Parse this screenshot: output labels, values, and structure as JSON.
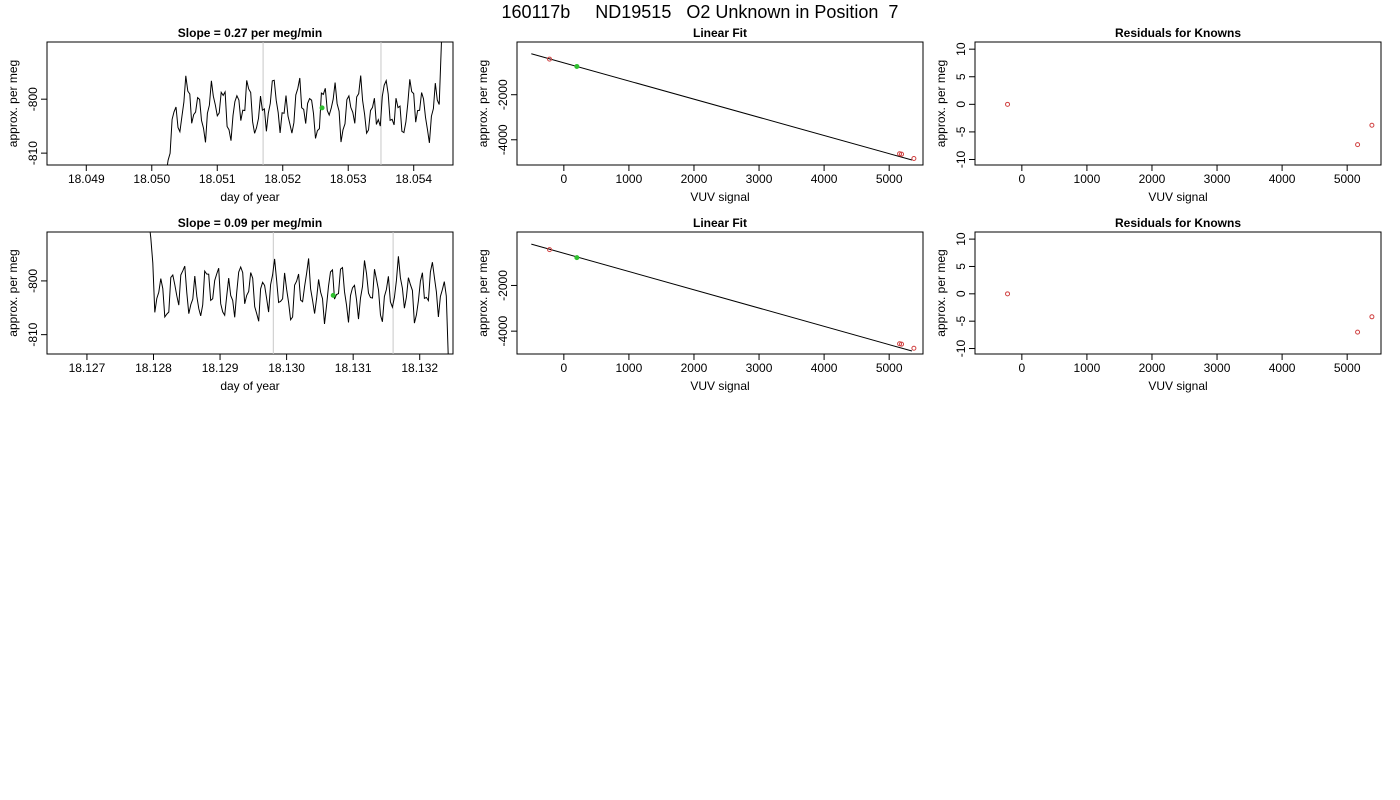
{
  "page_title": "160117b     ND19515   O2 Unknown in Position  7",
  "colors": {
    "trace": "#000000",
    "guide": "#c8c8c8",
    "known": "#d04040",
    "unknown": "#30c030"
  },
  "chart_data": [
    {
      "type": "line",
      "title": "Slope =  0.27  per meg/min",
      "xlabel": "day of year",
      "ylabel": "approx. per meg",
      "xlim": [
        18.0484,
        18.0546
      ],
      "ylim": [
        -812.2,
        -789.4
      ],
      "xticks": [
        "18.049",
        "18.050",
        "18.051",
        "18.052",
        "18.053",
        "18.054"
      ],
      "xtick_values": [
        18.049,
        18.05,
        18.051,
        18.052,
        18.053,
        18.054
      ],
      "yticks": [
        "-810",
        "-800"
      ],
      "ytick_values": [
        -810,
        -800
      ],
      "guide_lines_x": [
        18.0517,
        18.0535
      ],
      "unknown_point": {
        "x": 18.0526,
        "y": -801.6
      },
      "trace": {
        "x_start": 18.0501,
        "x_end": 18.0544,
        "step": 3e-05,
        "base": -801.8,
        "amp1": 3.4,
        "period1": 0.00019,
        "amp2": 2.1,
        "period2": 0.00043,
        "amp3": 1.3,
        "period3": 6.7e-05,
        "ramp_start": -822,
        "ramp_len": 0.00025,
        "end_value": -782
      }
    },
    {
      "type": "scatter",
      "title": "Linear Fit",
      "xlabel": "VUV signal",
      "ylabel": "approx. per meg",
      "xlim": [
        -720,
        5520
      ],
      "ylim": [
        -5120,
        340
      ],
      "xticks": [
        "0",
        "1000",
        "2000",
        "3000",
        "4000",
        "5000"
      ],
      "xtick_values": [
        0,
        1000,
        2000,
        3000,
        4000,
        5000
      ],
      "yticks": [
        "-4000",
        "-2000"
      ],
      "ytick_values": [
        -4000,
        -2000
      ],
      "fit_line": {
        "x": [
          -500,
          5350
        ],
        "y": [
          -180,
          -4900
        ]
      },
      "known_points": [
        {
          "x": -220,
          "y": -420
        },
        {
          "x": 5160,
          "y": -4620
        },
        {
          "x": 5190,
          "y": -4640
        },
        {
          "x": 5380,
          "y": -4830
        }
      ],
      "unknown_points": [
        {
          "x": 200,
          "y": -745
        }
      ]
    },
    {
      "type": "scatter",
      "title": "Residuals for Knowns",
      "xlabel": "VUV signal",
      "ylabel": "approx. per meg",
      "xlim": [
        -720,
        5520
      ],
      "ylim": [
        -11,
        11.3
      ],
      "xticks": [
        "0",
        "1000",
        "2000",
        "3000",
        "4000",
        "5000"
      ],
      "xtick_values": [
        0,
        1000,
        2000,
        3000,
        4000,
        5000
      ],
      "yticks": [
        "-10",
        "-5",
        "0",
        "5",
        "10"
      ],
      "ytick_values": [
        -10,
        -5,
        0,
        5,
        10
      ],
      "known_points": [
        {
          "x": -220,
          "y": 0
        },
        {
          "x": 5160,
          "y": -7.3
        },
        {
          "x": 5380,
          "y": -3.8
        }
      ],
      "unknown_points": []
    },
    {
      "type": "line",
      "title": "Slope =  0.09  per meg/min",
      "xlabel": "day of year",
      "ylabel": "approx. per meg",
      "xlim": [
        18.1264,
        18.1325
      ],
      "ylim": [
        -813.6,
        -790.9
      ],
      "xticks": [
        "18.127",
        "18.128",
        "18.129",
        "18.130",
        "18.131",
        "18.132"
      ],
      "xtick_values": [
        18.127,
        18.128,
        18.129,
        18.13,
        18.131,
        18.132
      ],
      "yticks": [
        "-810",
        "-800"
      ],
      "ytick_values": [
        -810,
        -800
      ],
      "guide_lines_x": [
        18.1298,
        18.1316
      ],
      "unknown_point": {
        "x": 18.1307,
        "y": -802.7
      },
      "trace": {
        "x_start": 18.1279,
        "x_end": 18.1324,
        "step": 3e-05,
        "base": -802.0,
        "amp1": 3.6,
        "period1": 0.00017,
        "amp2": 1.9,
        "period2": 0.00047,
        "amp3": 1.2,
        "period3": 7.1e-05,
        "ramp_start": -786,
        "ramp_len": 0.00012,
        "end_value": -820
      }
    },
    {
      "type": "scatter",
      "title": "Linear Fit",
      "xlabel": "VUV signal",
      "ylabel": "approx. per meg",
      "xlim": [
        -720,
        5520
      ],
      "ylim": [
        -5000,
        340
      ],
      "xticks": [
        "0",
        "1000",
        "2000",
        "3000",
        "4000",
        "5000"
      ],
      "xtick_values": [
        0,
        1000,
        2000,
        3000,
        4000,
        5000
      ],
      "yticks": [
        "-4000",
        "-2000"
      ],
      "ytick_values": [
        -4000,
        -2000
      ],
      "fit_line": {
        "x": [
          -500,
          5350
        ],
        "y": [
          -190,
          -4870
        ]
      },
      "known_points": [
        {
          "x": -220,
          "y": -430
        },
        {
          "x": 5160,
          "y": -4550
        },
        {
          "x": 5190,
          "y": -4570
        },
        {
          "x": 5380,
          "y": -4750
        }
      ],
      "unknown_points": [
        {
          "x": 200,
          "y": -780
        }
      ]
    },
    {
      "type": "scatter",
      "title": "Residuals for Knowns",
      "xlabel": "VUV signal",
      "ylabel": "approx. per meg",
      "xlim": [
        -720,
        5520
      ],
      "ylim": [
        -11,
        11.3
      ],
      "xticks": [
        "0",
        "1000",
        "2000",
        "3000",
        "4000",
        "5000"
      ],
      "xtick_values": [
        0,
        1000,
        2000,
        3000,
        4000,
        5000
      ],
      "yticks": [
        "-10",
        "-5",
        "0",
        "5",
        "10"
      ],
      "ytick_values": [
        -10,
        -5,
        0,
        5,
        10
      ],
      "known_points": [
        {
          "x": -220,
          "y": 0
        },
        {
          "x": 5160,
          "y": -7.0
        },
        {
          "x": 5380,
          "y": -4.2
        }
      ],
      "unknown_points": []
    }
  ]
}
